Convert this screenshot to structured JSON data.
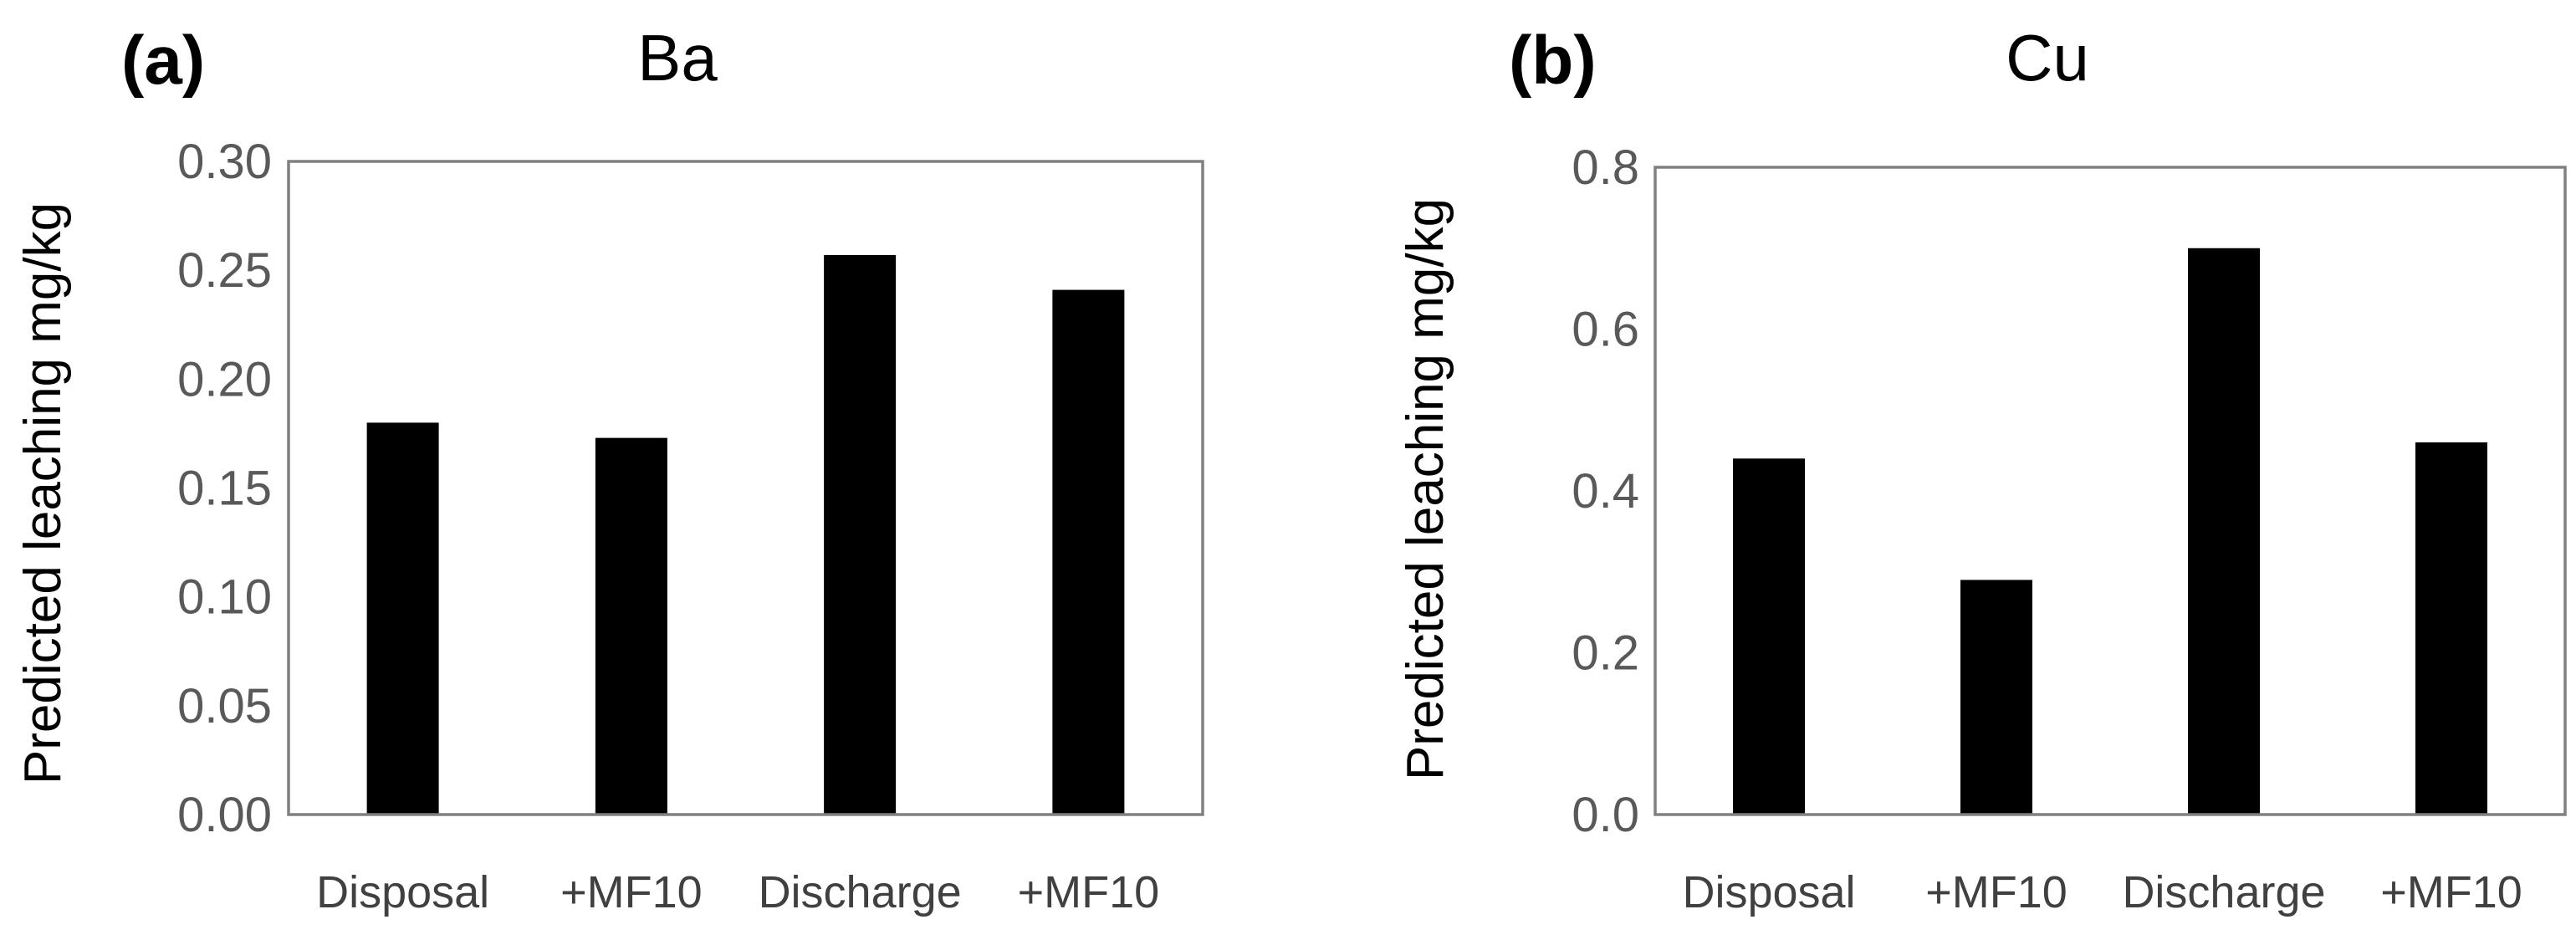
{
  "colors": {
    "bar": "#000000",
    "frame": "#808080",
    "tick_text": "#595959",
    "category_text": "#404040"
  },
  "chart_data": [
    {
      "type": "bar",
      "panel_label": "(a)",
      "title": "Ba",
      "ylabel": "Predicted leaching mg/kg",
      "xlabel": "",
      "categories": [
        "Disposal",
        "+MF10",
        "Discharge",
        "+MF10"
      ],
      "values": [
        0.18,
        0.173,
        0.257,
        0.241
      ],
      "ylim": [
        0,
        0.3
      ],
      "yticks": [
        0.0,
        0.05,
        0.1,
        0.15,
        0.2,
        0.25,
        0.3
      ],
      "ytick_labels": [
        "0.00",
        "0.05",
        "0.10",
        "0.15",
        "0.20",
        "0.25",
        "0.30"
      ],
      "grid": false,
      "legend": "none"
    },
    {
      "type": "bar",
      "panel_label": "(b)",
      "title": "Cu",
      "ylabel": "Predicted leaching mg/kg",
      "xlabel": "",
      "categories": [
        "Disposal",
        "+MF10",
        "Discharge",
        "+MF10"
      ],
      "values": [
        0.44,
        0.29,
        0.7,
        0.46
      ],
      "ylim": [
        0,
        0.8
      ],
      "yticks": [
        0.0,
        0.2,
        0.4,
        0.6,
        0.8
      ],
      "ytick_labels": [
        "0.0",
        "0.2",
        "0.4",
        "0.6",
        "0.8"
      ],
      "grid": false,
      "legend": "none"
    }
  ]
}
